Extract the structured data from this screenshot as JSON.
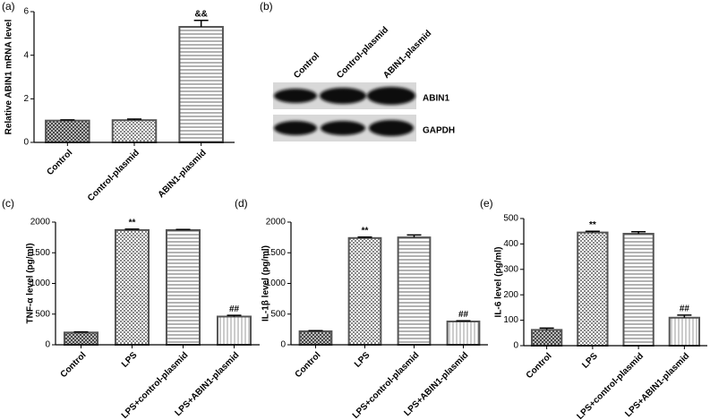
{
  "chart_data": [
    {
      "type": "bar",
      "panel": "(a)",
      "ylabel": "Relative ABIN1 mRNA level",
      "categories": [
        "Control",
        "Control-plasmid",
        "ABIN1-plasmid"
      ],
      "values": [
        1.0,
        1.02,
        5.3
      ],
      "errors": [
        0.03,
        0.05,
        0.3
      ],
      "markers": [
        null,
        null,
        "&&"
      ],
      "fills": [
        "crosshatch",
        "checker",
        "hstripes"
      ],
      "color": "#555555",
      "ylim": [
        0,
        6
      ],
      "yticks": [
        0,
        2,
        4,
        6
      ]
    },
    {
      "type": "bar",
      "panel": "(c)",
      "ylabel": "TNF-α level (pg/ml)",
      "categories": [
        "Control",
        "LPS",
        "LPS+control-plasmid",
        "LPS+ABIN1-plasmid"
      ],
      "values": [
        200,
        1870,
        1870,
        460
      ],
      "errors": [
        10,
        15,
        10,
        20
      ],
      "markers": [
        null,
        "**",
        null,
        "##"
      ],
      "fills": [
        "crosshatch",
        "checker",
        "hstripes",
        "vstripes"
      ],
      "color": "#555555",
      "ylim": [
        0,
        2000
      ],
      "yticks": [
        0,
        500,
        1000,
        1500,
        2000
      ]
    },
    {
      "type": "bar",
      "panel": "(d)",
      "ylabel": "IL-1β level (pg/ml)",
      "categories": [
        "Control",
        "LPS",
        "LPS+control-plasmid",
        "LPS+ABIN1-plasmid"
      ],
      "values": [
        220,
        1740,
        1750,
        380
      ],
      "errors": [
        10,
        15,
        40,
        10
      ],
      "markers": [
        null,
        "**",
        null,
        "##"
      ],
      "fills": [
        "crosshatch",
        "checker",
        "hstripes",
        "vstripes"
      ],
      "color": "#555555",
      "ylim": [
        0,
        2000
      ],
      "yticks": [
        0,
        500,
        1000,
        1500,
        2000
      ]
    },
    {
      "type": "bar",
      "panel": "(e)",
      "ylabel": "IL-6 level (pg/ml)",
      "categories": [
        "Control",
        "LPS",
        "LPS+control-plasmid",
        "LPS+ABIN1-plasmid"
      ],
      "values": [
        62,
        445,
        440,
        110
      ],
      "errors": [
        7,
        5,
        8,
        10
      ],
      "markers": [
        null,
        "**",
        null,
        "##"
      ],
      "fills": [
        "crosshatch",
        "checker",
        "hstripes",
        "vstripes"
      ],
      "color": "#555555",
      "ylim": [
        0,
        500
      ],
      "yticks": [
        0,
        100,
        200,
        300,
        400,
        500
      ]
    }
  ],
  "blot": {
    "panel": "(b)",
    "lanes": [
      "Control",
      "Control-plasmid",
      "ABIN1-plasmid"
    ],
    "bands": [
      "ABIN1",
      "GAPDH"
    ]
  }
}
